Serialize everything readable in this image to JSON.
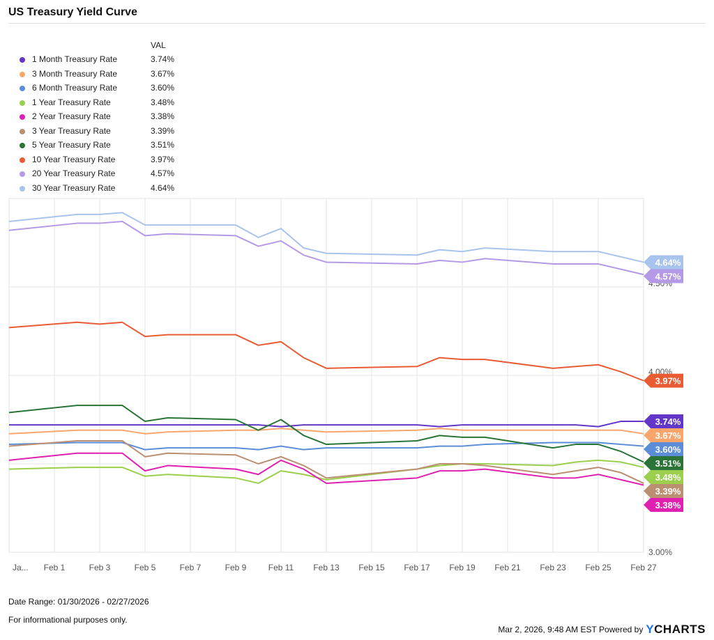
{
  "title": "US Treasury Yield Curve",
  "legend_header": "VAL",
  "footer": {
    "date_range": "Date Range: 01/30/2026 - 02/27/2026",
    "disclaimer": "For informational purposes only.",
    "timestamp": "Mar 2, 2026, 9:48 AM EST Powered by",
    "brand_y": "Y",
    "brand_rest": "CHARTS"
  },
  "chart_data": {
    "type": "line",
    "title": "US Treasury Yield Curve",
    "xlabel": "",
    "ylabel": "",
    "ylim": [
      3.0,
      5.0
    ],
    "y_ticks": [
      "3.00%",
      "4.00%",
      "4.50%"
    ],
    "y_grid": [
      3.0,
      3.5,
      4.0,
      4.5,
      5.0
    ],
    "x_ticks": [
      "Ja...",
      "Feb 1",
      "Feb 3",
      "Feb 5",
      "Feb 7",
      "Feb 9",
      "Feb 11",
      "Feb 13",
      "Feb 15",
      "Feb 17",
      "Feb 19",
      "Feb 21",
      "Feb 23",
      "Feb 25",
      "Feb 27"
    ],
    "x_tick_days": [
      0,
      2,
      4,
      6,
      8,
      10,
      12,
      14,
      16,
      18,
      20,
      22,
      24,
      26,
      28
    ],
    "x_days": [
      0,
      3,
      4,
      5,
      6,
      7,
      10,
      11,
      12,
      13,
      14,
      18,
      19,
      20,
      21,
      24,
      25,
      26,
      27,
      28
    ],
    "x_day0": "2026-01-30",
    "grid": true,
    "legend_position": "top-left",
    "series": [
      {
        "name": "1 Month Treasury Rate",
        "label": "3.74%",
        "color": "#6236c8",
        "values": [
          3.72,
          3.72,
          3.72,
          3.72,
          3.72,
          3.72,
          3.72,
          3.72,
          3.71,
          3.72,
          3.72,
          3.72,
          3.71,
          3.72,
          3.72,
          3.72,
          3.72,
          3.71,
          3.74,
          3.74
        ]
      },
      {
        "name": "3 Month Treasury Rate",
        "label": "3.67%",
        "color": "#f9a66d",
        "values": [
          3.67,
          3.69,
          3.69,
          3.69,
          3.67,
          3.68,
          3.69,
          3.69,
          3.7,
          3.69,
          3.68,
          3.69,
          3.7,
          3.69,
          3.69,
          3.69,
          3.69,
          3.69,
          3.69,
          3.67
        ]
      },
      {
        "name": "6 Month Treasury Rate",
        "label": "3.60%",
        "color": "#5b8dd9",
        "values": [
          3.61,
          3.62,
          3.62,
          3.62,
          3.58,
          3.59,
          3.59,
          3.58,
          3.6,
          3.58,
          3.59,
          3.59,
          3.6,
          3.6,
          3.61,
          3.62,
          3.62,
          3.62,
          3.61,
          3.6
        ]
      },
      {
        "name": "1 Year Treasury Rate",
        "label": "3.48%",
        "color": "#9bcf4c",
        "values": [
          3.47,
          3.48,
          3.48,
          3.48,
          3.43,
          3.44,
          3.42,
          3.39,
          3.46,
          3.44,
          3.41,
          3.47,
          3.49,
          3.5,
          3.5,
          3.49,
          3.51,
          3.52,
          3.51,
          3.48
        ]
      },
      {
        "name": "2 Year Treasury Rate",
        "label": "3.38%",
        "color": "#e020b0",
        "values": [
          3.52,
          3.56,
          3.56,
          3.56,
          3.46,
          3.49,
          3.47,
          3.44,
          3.52,
          3.47,
          3.39,
          3.42,
          3.46,
          3.46,
          3.47,
          3.42,
          3.42,
          3.44,
          3.41,
          3.38
        ]
      },
      {
        "name": "3 Year Treasury Rate",
        "label": "3.39%",
        "color": "#bb9072",
        "values": [
          3.6,
          3.63,
          3.63,
          3.63,
          3.54,
          3.56,
          3.55,
          3.5,
          3.54,
          3.49,
          3.42,
          3.47,
          3.5,
          3.5,
          3.49,
          3.44,
          3.46,
          3.48,
          3.45,
          3.39
        ]
      },
      {
        "name": "5 Year Treasury Rate",
        "label": "3.51%",
        "color": "#2a7437",
        "values": [
          3.79,
          3.83,
          3.83,
          3.83,
          3.74,
          3.76,
          3.75,
          3.69,
          3.75,
          3.66,
          3.61,
          3.63,
          3.66,
          3.65,
          3.65,
          3.59,
          3.61,
          3.61,
          3.57,
          3.51
        ]
      },
      {
        "name": "10 Year Treasury Rate",
        "label": "3.97%",
        "color": "#e95c33",
        "values": [
          4.27,
          4.3,
          4.29,
          4.3,
          4.22,
          4.23,
          4.23,
          4.17,
          4.19,
          4.1,
          4.04,
          4.05,
          4.1,
          4.09,
          4.09,
          4.04,
          4.05,
          4.06,
          4.02,
          3.97
        ]
      },
      {
        "name": "20 Year Treasury Rate",
        "label": "4.57%",
        "color": "#b49ae6",
        "values": [
          4.82,
          4.86,
          4.86,
          4.87,
          4.79,
          4.8,
          4.79,
          4.73,
          4.76,
          4.68,
          4.64,
          4.63,
          4.65,
          4.64,
          4.66,
          4.63,
          4.63,
          4.63,
          4.6,
          4.57
        ]
      },
      {
        "name": "30 Year Treasury Rate",
        "label": "4.64%",
        "color": "#a9c4ec",
        "values": [
          4.87,
          4.91,
          4.91,
          4.92,
          4.85,
          4.85,
          4.85,
          4.78,
          4.83,
          4.72,
          4.69,
          4.68,
          4.71,
          4.7,
          4.72,
          4.7,
          4.7,
          4.7,
          4.67,
          4.64
        ]
      }
    ]
  }
}
